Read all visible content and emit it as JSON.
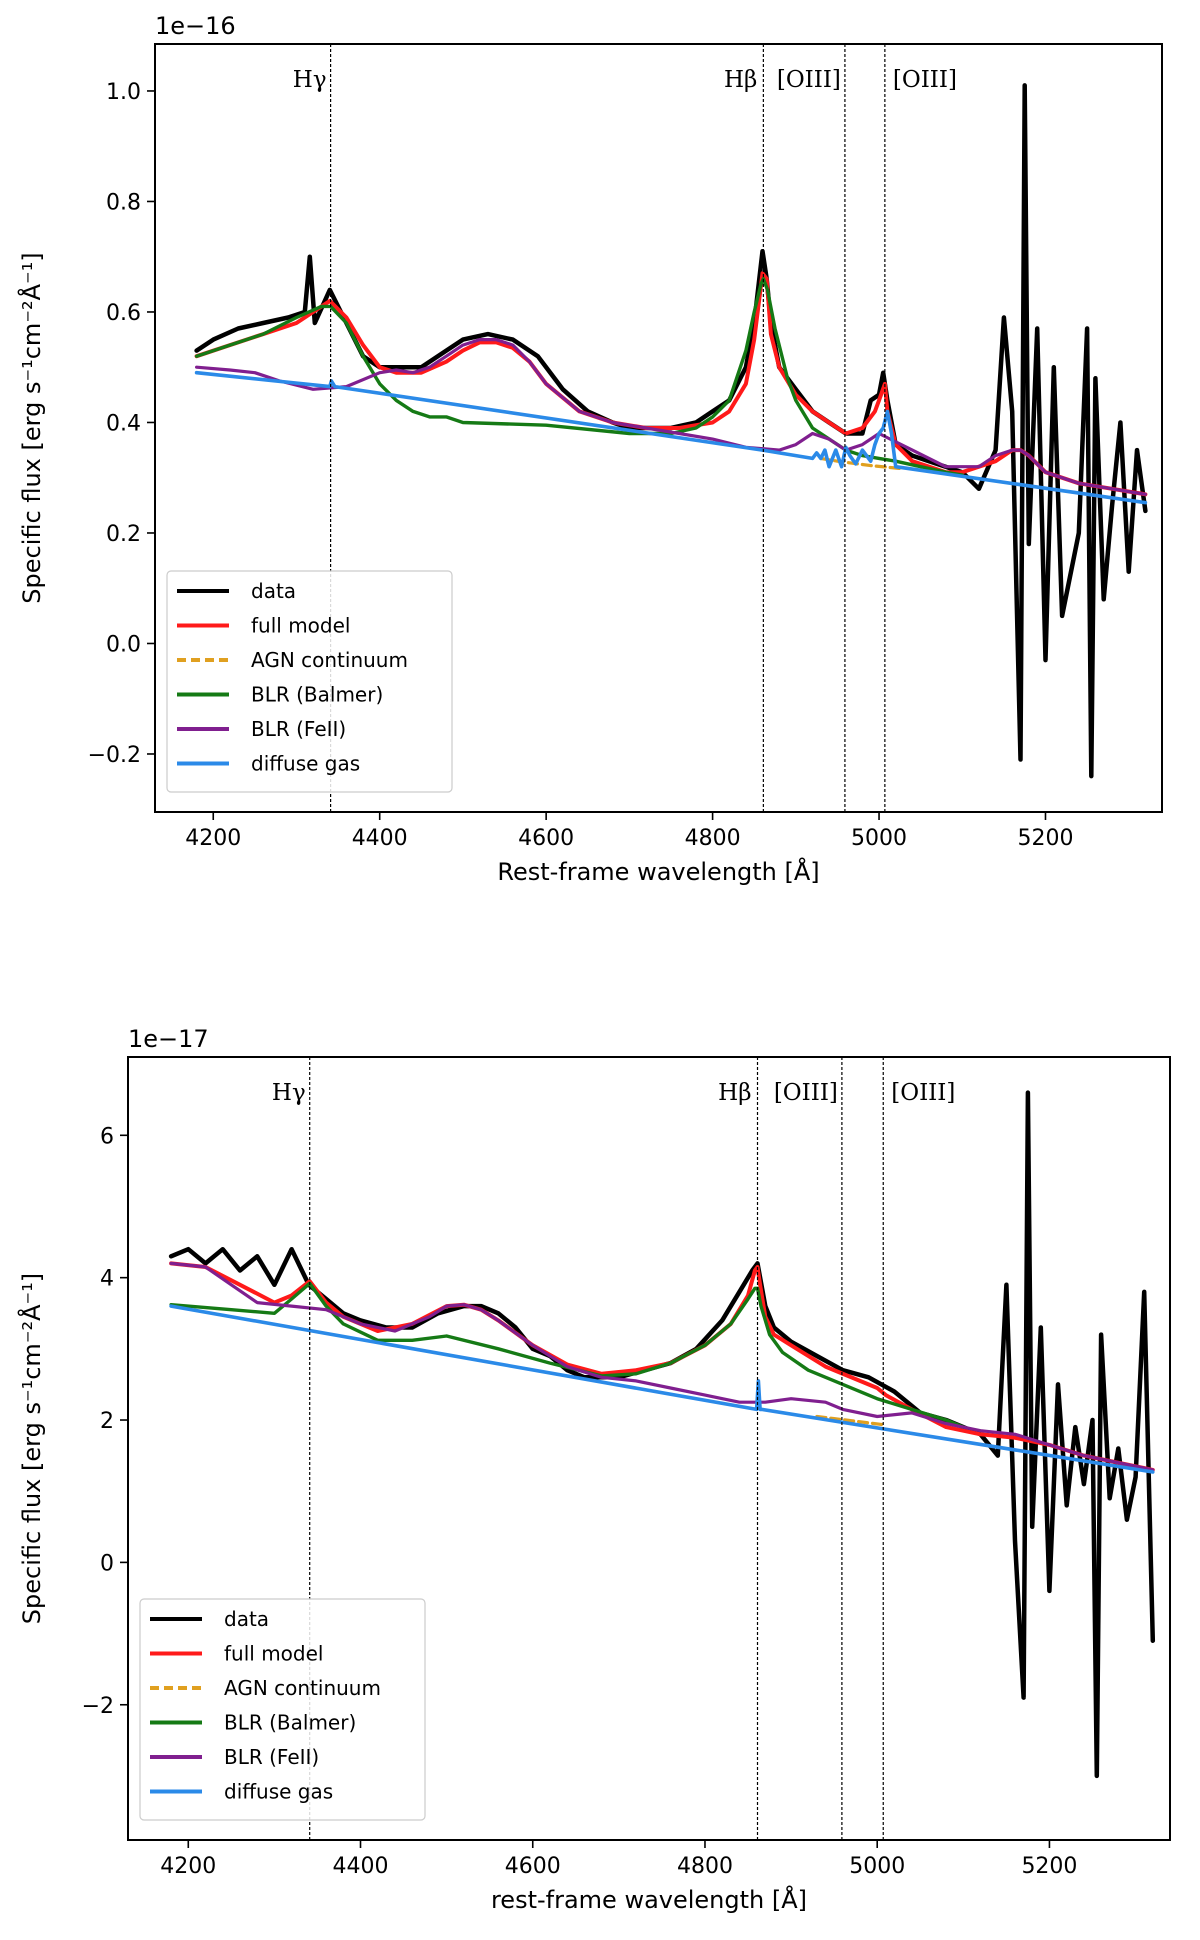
{
  "chart_data": [
    {
      "type": "line",
      "panel": "top",
      "offset_text": "1e−16",
      "xlabel": "Rest-frame wavelength [Å]",
      "ylabel": "Specific flux [erg s⁻¹cm⁻²Å⁻¹]",
      "xlim": [
        4130,
        5340
      ],
      "ylim": [
        -0.305,
        1.085
      ],
      "xticks": [
        4200,
        4400,
        4600,
        4800,
        5000,
        5200
      ],
      "yticks": [
        -0.2,
        0.0,
        0.2,
        0.4,
        0.6,
        0.8,
        1.0
      ],
      "ytick_labels": [
        "−0.2",
        "0.0",
        "0.2",
        "0.4",
        "0.6",
        "0.8",
        "1.0"
      ],
      "lines": [
        {
          "name": "Hγ",
          "x": 4341
        },
        {
          "name": "Hβ",
          "x": 4861
        },
        {
          "name": "[OIII]",
          "x": 4959
        },
        {
          "name": "[OIII]",
          "x": 5007
        }
      ],
      "legend": [
        "data",
        "full model",
        "AGN continuum",
        "BLR (Balmer)",
        "BLR (FeII)",
        "diffuse gas"
      ],
      "legend_loc": "lower-left",
      "colors": {
        "data": "#000000",
        "full model": "#ff1a1a",
        "AGN continuum": "#e0a020",
        "BLR (Balmer)": "#157a15",
        "BLR (FeII)": "#801f8f",
        "diffuse gas": "#2b8ae8"
      },
      "series": [
        {
          "name": "data",
          "x": [
            4180,
            4200,
            4230,
            4260,
            4290,
            4310,
            4316,
            4322,
            4340,
            4360,
            4380,
            4400,
            4420,
            4450,
            4480,
            4500,
            4530,
            4560,
            4590,
            4620,
            4650,
            4680,
            4700,
            4720,
            4750,
            4780,
            4800,
            4820,
            4840,
            4850,
            4860,
            4865,
            4870,
            4880,
            4900,
            4920,
            4940,
            4960,
            4980,
            4990,
            5000,
            5005,
            5010,
            5020,
            5040,
            5060,
            5080,
            5100,
            5120,
            5140,
            5150,
            5160,
            5170,
            5175,
            5180,
            5190,
            5200,
            5210,
            5220,
            5240,
            5250,
            5255,
            5260,
            5270,
            5280,
            5290,
            5300,
            5310,
            5320
          ],
          "y": [
            0.53,
            0.55,
            0.57,
            0.58,
            0.59,
            0.6,
            0.7,
            0.58,
            0.64,
            0.58,
            0.52,
            0.5,
            0.5,
            0.5,
            0.53,
            0.55,
            0.56,
            0.55,
            0.52,
            0.46,
            0.42,
            0.4,
            0.39,
            0.39,
            0.39,
            0.4,
            0.42,
            0.44,
            0.5,
            0.58,
            0.71,
            0.66,
            0.58,
            0.5,
            0.46,
            0.42,
            0.4,
            0.38,
            0.38,
            0.44,
            0.45,
            0.49,
            0.44,
            0.36,
            0.34,
            0.33,
            0.32,
            0.31,
            0.28,
            0.35,
            0.59,
            0.42,
            -0.21,
            1.01,
            0.18,
            0.57,
            -0.03,
            0.5,
            0.05,
            0.2,
            0.57,
            -0.24,
            0.48,
            0.08,
            0.25,
            0.4,
            0.13,
            0.35,
            0.24
          ]
        },
        {
          "name": "full model",
          "x": [
            4180,
            4220,
            4260,
            4300,
            4340,
            4360,
            4380,
            4400,
            4420,
            4450,
            4480,
            4500,
            4520,
            4540,
            4560,
            4580,
            4600,
            4640,
            4680,
            4720,
            4760,
            4800,
            4820,
            4840,
            4850,
            4860,
            4865,
            4870,
            4880,
            4900,
            4920,
            4940,
            4960,
            4980,
            4995,
            5000,
            5007,
            5010,
            5020,
            5040,
            5060,
            5080,
            5100,
            5120,
            5140,
            5160,
            5170,
            5180,
            5200,
            5240,
            5280,
            5320
          ],
          "y": [
            0.52,
            0.54,
            0.56,
            0.58,
            0.62,
            0.59,
            0.54,
            0.5,
            0.49,
            0.49,
            0.51,
            0.53,
            0.545,
            0.545,
            0.535,
            0.51,
            0.47,
            0.42,
            0.4,
            0.39,
            0.39,
            0.4,
            0.42,
            0.47,
            0.55,
            0.67,
            0.66,
            0.56,
            0.5,
            0.45,
            0.42,
            0.4,
            0.38,
            0.39,
            0.42,
            0.44,
            0.47,
            0.42,
            0.36,
            0.33,
            0.32,
            0.31,
            0.31,
            0.32,
            0.33,
            0.35,
            0.35,
            0.34,
            0.31,
            0.29,
            0.28,
            0.27
          ]
        },
        {
          "name": "AGN continuum",
          "x": [
            4930,
            4950,
            4970,
            4990,
            5010,
            5030
          ],
          "y": [
            0.335,
            0.33,
            0.326,
            0.322,
            0.319,
            0.316
          ]
        },
        {
          "name": "BLR (Balmer)",
          "x": [
            4180,
            4220,
            4260,
            4300,
            4330,
            4341,
            4360,
            4380,
            4400,
            4420,
            4440,
            4460,
            4480,
            4500,
            4600,
            4700,
            4750,
            4780,
            4800,
            4820,
            4840,
            4850,
            4858,
            4861,
            4866,
            4875,
            4890,
            4900,
            4920,
            4940,
            4960,
            4980,
            5000,
            5020,
            5050,
            5080,
            5100
          ],
          "y": [
            0.52,
            0.54,
            0.56,
            0.59,
            0.61,
            0.61,
            0.58,
            0.52,
            0.47,
            0.44,
            0.42,
            0.41,
            0.41,
            0.4,
            0.395,
            0.38,
            0.38,
            0.39,
            0.41,
            0.44,
            0.53,
            0.6,
            0.65,
            0.66,
            0.64,
            0.57,
            0.48,
            0.44,
            0.39,
            0.37,
            0.35,
            0.34,
            0.335,
            0.33,
            0.32,
            0.31,
            0.305
          ]
        },
        {
          "name": "BLR (FeII)",
          "x": [
            4180,
            4220,
            4250,
            4280,
            4320,
            4360,
            4400,
            4420,
            4440,
            4460,
            4480,
            4500,
            4520,
            4540,
            4560,
            4580,
            4600,
            4640,
            4680,
            4720,
            4760,
            4800,
            4840,
            4880,
            4900,
            4920,
            4940,
            4960,
            4980,
            5000,
            5040,
            5080,
            5120,
            5140,
            5160,
            5170,
            5180,
            5200,
            5240,
            5280,
            5320
          ],
          "y": [
            0.5,
            0.495,
            0.49,
            0.475,
            0.46,
            0.465,
            0.49,
            0.495,
            0.49,
            0.5,
            0.52,
            0.54,
            0.55,
            0.55,
            0.54,
            0.51,
            0.47,
            0.42,
            0.4,
            0.39,
            0.38,
            0.37,
            0.355,
            0.35,
            0.36,
            0.38,
            0.37,
            0.35,
            0.36,
            0.38,
            0.35,
            0.32,
            0.32,
            0.34,
            0.35,
            0.35,
            0.34,
            0.31,
            0.29,
            0.28,
            0.27
          ]
        },
        {
          "name": "diffuse gas",
          "x": [
            4180,
            4340,
            4342,
            4346,
            4860,
            4920,
            4925,
            4930,
            4935,
            4940,
            4948,
            4955,
            4960,
            4965,
            4972,
            4980,
            4990,
            4995,
            5000,
            5005,
            5010,
            5015,
            5020,
            5320
          ],
          "y": [
            0.49,
            0.465,
            0.475,
            0.465,
            0.35,
            0.335,
            0.345,
            0.335,
            0.35,
            0.32,
            0.35,
            0.32,
            0.355,
            0.34,
            0.325,
            0.35,
            0.33,
            0.36,
            0.38,
            0.39,
            0.42,
            0.38,
            0.32,
            0.255
          ]
        }
      ]
    },
    {
      "type": "line",
      "panel": "bottom",
      "offset_text": "1e−17",
      "xlabel": "rest-frame wavelength [Å]",
      "ylabel": "Specific flux [erg s⁻¹cm⁻²Å⁻¹]",
      "xlim": [
        4130,
        5340
      ],
      "ylim": [
        -3.9,
        7.1
      ],
      "xticks": [
        4200,
        4400,
        4600,
        4800,
        5000,
        5200
      ],
      "yticks": [
        -2,
        0,
        2,
        4,
        6
      ],
      "ytick_labels": [
        "−2",
        "0",
        "2",
        "4",
        "6"
      ],
      "lines": [
        {
          "name": "Hγ",
          "x": 4341
        },
        {
          "name": "Hβ",
          "x": 4861
        },
        {
          "name": "[OIII]",
          "x": 4959
        },
        {
          "name": "[OIII]",
          "x": 5007
        }
      ],
      "legend": [
        "data",
        "full model",
        "AGN continuum",
        "BLR (Balmer)",
        "BLR (FeII)",
        "diffuse gas"
      ],
      "legend_loc": "lower-left",
      "colors": {
        "data": "#000000",
        "full model": "#ff1a1a",
        "AGN continuum": "#e0a020",
        "BLR (Balmer)": "#157a15",
        "BLR (FeII)": "#801f8f",
        "diffuse gas": "#2b8ae8"
      },
      "series": [
        {
          "name": "data",
          "x": [
            4180,
            4200,
            4220,
            4240,
            4260,
            4280,
            4300,
            4320,
            4340,
            4360,
            4380,
            4400,
            4430,
            4460,
            4490,
            4520,
            4540,
            4560,
            4580,
            4600,
            4620,
            4640,
            4660,
            4680,
            4700,
            4730,
            4760,
            4790,
            4820,
            4840,
            4855,
            4861,
            4870,
            4880,
            4900,
            4930,
            4960,
            4990,
            5020,
            5050,
            5080,
            5100,
            5120,
            5140,
            5150,
            5160,
            5170,
            5175,
            5180,
            5190,
            5200,
            5210,
            5220,
            5230,
            5240,
            5250,
            5255,
            5260,
            5270,
            5280,
            5290,
            5300,
            5310,
            5320
          ],
          "y": [
            4.3,
            4.4,
            4.2,
            4.4,
            4.1,
            4.3,
            3.9,
            4.4,
            3.9,
            3.7,
            3.5,
            3.4,
            3.3,
            3.3,
            3.5,
            3.6,
            3.6,
            3.5,
            3.3,
            3.0,
            2.9,
            2.7,
            2.6,
            2.6,
            2.6,
            2.7,
            2.8,
            3.0,
            3.4,
            3.8,
            4.1,
            4.2,
            3.6,
            3.3,
            3.1,
            2.9,
            2.7,
            2.6,
            2.4,
            2.1,
            2.0,
            1.9,
            1.8,
            1.5,
            3.9,
            0.3,
            -1.9,
            6.6,
            0.5,
            3.3,
            -0.4,
            2.5,
            0.8,
            1.9,
            1.1,
            2.0,
            -3.0,
            3.2,
            0.9,
            1.6,
            0.6,
            1.2,
            3.8,
            -1.1
          ]
        },
        {
          "name": "full model",
          "x": [
            4180,
            4220,
            4260,
            4300,
            4320,
            4341,
            4360,
            4380,
            4420,
            4460,
            4500,
            4520,
            4540,
            4560,
            4600,
            4640,
            4680,
            4720,
            4760,
            4800,
            4830,
            4850,
            4858,
            4861,
            4864,
            4870,
            4880,
            4900,
            4940,
            4980,
            5000,
            5010,
            5040,
            5080,
            5120,
            5160,
            5200,
            5240,
            5280,
            5320
          ],
          "y": [
            4.2,
            4.15,
            3.9,
            3.65,
            3.75,
            3.95,
            3.65,
            3.45,
            3.25,
            3.35,
            3.6,
            3.62,
            3.55,
            3.4,
            3.05,
            2.78,
            2.65,
            2.7,
            2.8,
            3.05,
            3.35,
            3.75,
            4.1,
            4.15,
            3.9,
            3.45,
            3.2,
            3.05,
            2.75,
            2.55,
            2.45,
            2.35,
            2.15,
            1.9,
            1.8,
            1.75,
            1.65,
            1.5,
            1.4,
            1.3
          ]
        },
        {
          "name": "AGN continuum",
          "x": [
            4930,
            4950,
            4970,
            4990,
            5010
          ],
          "y": [
            2.05,
            2.02,
            1.99,
            1.96,
            1.93
          ]
        },
        {
          "name": "BLR (Balmer)",
          "x": [
            4180,
            4250,
            4300,
            4320,
            4341,
            4360,
            4380,
            4420,
            4460,
            4500,
            4560,
            4620,
            4680,
            4720,
            4760,
            4800,
            4830,
            4850,
            4858,
            4861,
            4865,
            4875,
            4890,
            4920,
            4960,
            5000,
            5040,
            5080,
            5100
          ],
          "y": [
            3.62,
            3.55,
            3.5,
            3.7,
            3.92,
            3.6,
            3.35,
            3.12,
            3.12,
            3.18,
            3.0,
            2.8,
            2.62,
            2.65,
            2.8,
            3.05,
            3.35,
            3.7,
            3.85,
            3.85,
            3.6,
            3.2,
            2.95,
            2.7,
            2.5,
            2.3,
            2.15,
            2.0,
            1.9
          ]
        },
        {
          "name": "BLR (FeII)",
          "x": [
            4180,
            4220,
            4250,
            4280,
            4320,
            4360,
            4400,
            4440,
            4480,
            4500,
            4520,
            4540,
            4560,
            4600,
            4640,
            4680,
            4720,
            4760,
            4800,
            4840,
            4870,
            4900,
            4940,
            4960,
            5000,
            5040,
            5080,
            5120,
            5160,
            5200,
            5240,
            5280,
            5320
          ],
          "y": [
            4.2,
            4.15,
            3.9,
            3.65,
            3.6,
            3.55,
            3.35,
            3.25,
            3.45,
            3.6,
            3.62,
            3.55,
            3.4,
            3.05,
            2.75,
            2.6,
            2.55,
            2.45,
            2.35,
            2.25,
            2.25,
            2.3,
            2.25,
            2.15,
            2.05,
            2.1,
            1.95,
            1.85,
            1.8,
            1.65,
            1.5,
            1.4,
            1.3
          ]
        },
        {
          "name": "diffuse gas",
          "x": [
            4180,
            4860,
            4862,
            4864,
            4866,
            5320
          ],
          "y": [
            3.6,
            2.15,
            2.55,
            2.15,
            2.15,
            1.27
          ]
        }
      ]
    }
  ]
}
